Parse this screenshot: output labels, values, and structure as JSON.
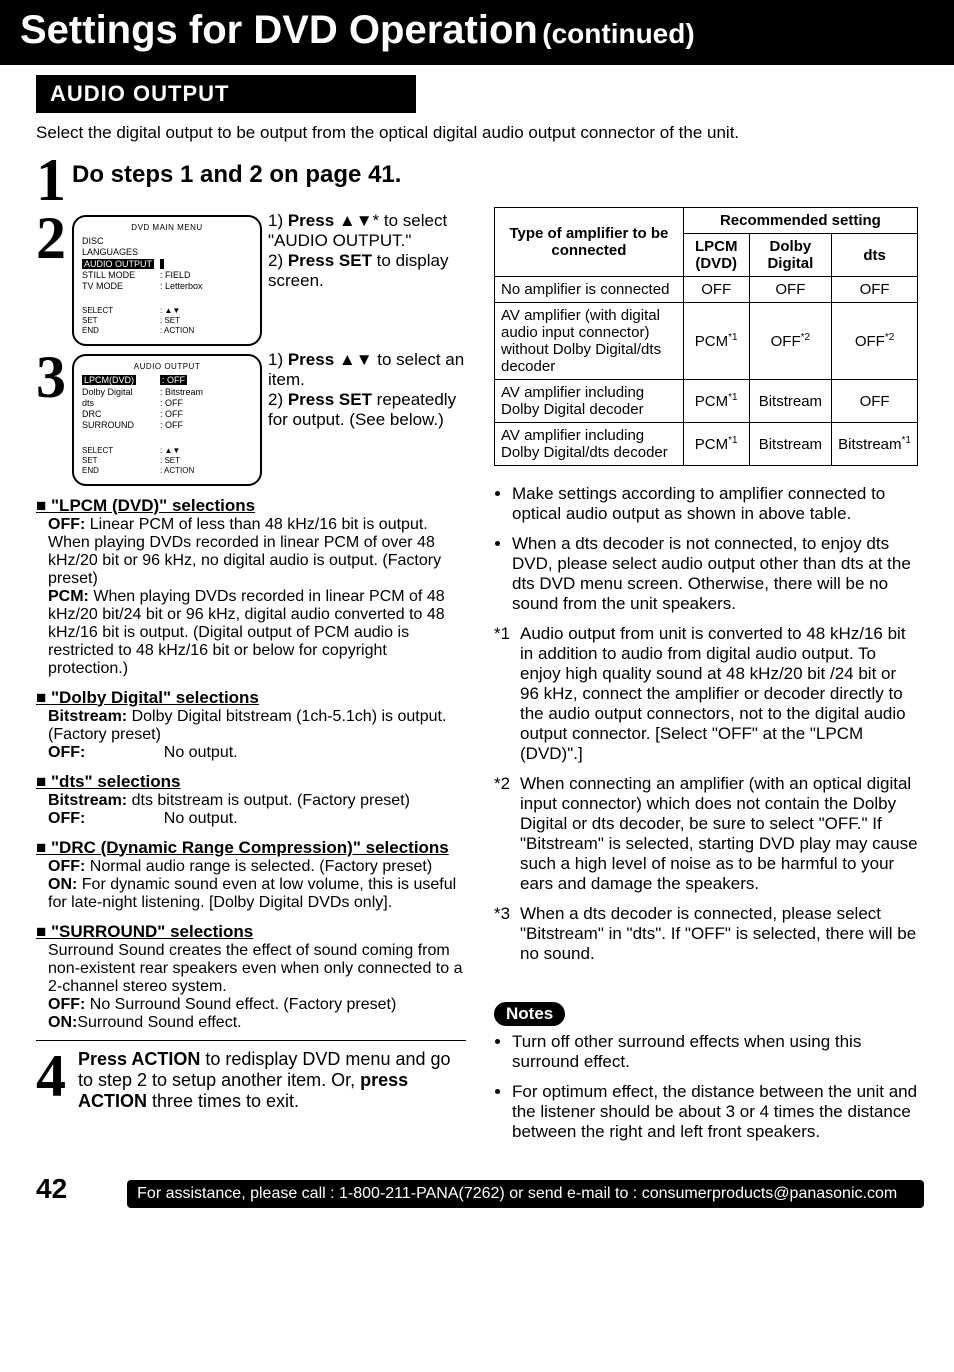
{
  "banner": {
    "title": "Settings for DVD Operation",
    "sub": "(continued)"
  },
  "section": {
    "header": "AUDIO OUTPUT",
    "intro": "Select the digital output to be output from the optical digital audio output connector of the unit."
  },
  "step1": {
    "text": "Do steps 1 and 2 on page 41."
  },
  "step2": {
    "osd_title": "DVD MAIN MENU",
    "osd_rows": [
      {
        "l": "DISC LANGUAGES",
        "r": ""
      },
      {
        "l": "AUDIO OUTPUT",
        "r": "",
        "hilite": true
      },
      {
        "l": "STILL MODE",
        "r": ": FIELD"
      },
      {
        "l": "TV MODE",
        "r": ": Letterbox"
      }
    ],
    "legend": [
      {
        "l": "SELECT",
        "r": ": ▲▼"
      },
      {
        "l": "SET",
        "r": ": SET"
      },
      {
        "l": "END",
        "r": ": ACTION"
      }
    ],
    "line1a": "1) ",
    "line1b": "Press ▲▼",
    "line1c": "* to select \"AUDIO OUTPUT.\"",
    "line2a": "2) ",
    "line2b": "Press SET",
    "line2c": " to display screen."
  },
  "step3": {
    "osd_title": "AUDIO OUTPUT",
    "osd_rows": [
      {
        "l": "LPCM(DVD)",
        "r": ": OFF",
        "hilite": true
      },
      {
        "l": "Dolby Digital",
        "r": ": Bitstream"
      },
      {
        "l": "dts",
        "r": ": OFF"
      },
      {
        "l": "DRC",
        "r": ": OFF"
      },
      {
        "l": "SURROUND",
        "r": ": OFF"
      }
    ],
    "legend": [
      {
        "l": "SELECT",
        "r": ": ▲▼"
      },
      {
        "l": "SET",
        "r": ": SET"
      },
      {
        "l": "END",
        "r": ": ACTION"
      }
    ],
    "line1a": "1) ",
    "line1b": "Press ▲▼",
    "line1c": " to select an item.",
    "line2a": "2) ",
    "line2b": "Press SET",
    "line2c": " repeatedly for output.",
    "line2d": " (See below.)"
  },
  "sel_lpcm": {
    "head": "\"LPCM (DVD)\" selections",
    "off_lab": "OFF:",
    "off_txt": "Linear PCM of less than 48 kHz/16 bit is output. When playing DVDs recorded in linear PCM of over 48 kHz/20 bit or 96 kHz, no digital audio is output. (Factory preset)",
    "pcm_lab": "PCM:",
    "pcm_txt": "When playing DVDs recorded in linear PCM of 48 kHz/20 bit/24 bit or 96 kHz, digital audio converted to 48 kHz/16 bit is output. (Digital output of PCM audio is restricted to 48 kHz/16 bit or below for copyright protection.)"
  },
  "sel_dolby": {
    "head": "\"Dolby Digital\" selections",
    "bs_lab": "Bitstream:",
    "bs_txt": "Dolby Digital bitstream (1ch-5.1ch) is output. (Factory preset)",
    "off_lab": "OFF:",
    "off_txt": "No output."
  },
  "sel_dts": {
    "head": "\"dts\" selections",
    "bs_lab": "Bitstream:",
    "bs_txt": "dts bitstream is output. (Factory preset)",
    "off_lab": "OFF:",
    "off_txt": "No output."
  },
  "sel_drc": {
    "head": "\"DRC (Dynamic Range Compression)\" selections",
    "off_lab": "OFF:",
    "off_txt": "Normal audio range is selected. (Factory preset)",
    "on_lab": "ON:",
    "on_txt": "For dynamic sound even at low volume, this is useful for late-night listening. [Dolby Digital DVDs only]."
  },
  "sel_surround": {
    "head": "\"SURROUND\" selections",
    "intro": "Surround Sound creates the effect of sound coming from non-existent rear speakers even when only connected to a 2-channel stereo system.",
    "off_lab": "OFF:",
    "off_txt": "No Surround Sound effect. (Factory preset)",
    "on_lab": "ON:",
    "on_txt": "Surround Sound effect."
  },
  "step4": {
    "t1": "Press ACTION",
    "t2": " to redisplay DVD menu and go to step 2 to setup another item. Or, ",
    "t3": "press ACTION",
    "t4": " three times to exit."
  },
  "table": {
    "hdr_type": "Type of amplifier to be connected",
    "hdr_rec": "Recommended setting",
    "col_lpcm": "LPCM (DVD)",
    "col_dolby": "Dolby Digital",
    "col_dts": "dts",
    "rows": [
      {
        "type": "No amplifier is connected",
        "lpcm": "OFF",
        "lpcm_sup": "",
        "dolby": "OFF",
        "dolby_sup": "",
        "dts": "OFF",
        "dts_sup": ""
      },
      {
        "type": "AV amplifier (with digital audio input connector) without Dolby Digital/dts decoder",
        "lpcm": "PCM",
        "lpcm_sup": "*1",
        "dolby": "OFF",
        "dolby_sup": "*2",
        "dts": "OFF",
        "dts_sup": "*2"
      },
      {
        "type": "AV amplifier including Dolby Digital decoder",
        "lpcm": "PCM",
        "lpcm_sup": "*1",
        "dolby": "Bitstream",
        "dolby_sup": "",
        "dts": "OFF",
        "dts_sup": ""
      },
      {
        "type": "AV amplifier including Dolby Digital/dts decoder",
        "lpcm": "PCM",
        "lpcm_sup": "*1",
        "dolby": "Bitstream",
        "dolby_sup": "",
        "dts": "Bitstream",
        "dts_sup": "*1"
      }
    ]
  },
  "right_bullets": [
    "Make settings according to amplifier connected to optical audio output as shown in above table.",
    "When a dts decoder is not connected, to enjoy dts DVD, please select audio output other than dts at the dts DVD menu screen. Otherwise, there will be no sound from the unit speakers."
  ],
  "footnotes": [
    {
      "k": "*1",
      "t": "Audio output from unit is converted to 48 kHz/16 bit in addition to audio from digital audio output. To enjoy high quality sound at 48 kHz/20 bit /24 bit or 96 kHz, connect the amplifier or decoder directly to the audio output connectors, not to the digital audio output connector. [Select \"OFF\" at the \"LPCM (DVD)\".]"
    },
    {
      "k": "*2",
      "t": "When connecting an amplifier (with an optical digital input connector) which does not contain the Dolby Digital or dts decoder, be sure to select \"OFF.\" If \"Bitstream\" is selected, starting DVD play may cause such a high level of noise as to be harmful to your ears and damage the speakers."
    },
    {
      "k": "*3",
      "t": "When a dts decoder is connected, please select \"Bitstream\" in \"dts\". If \"OFF\" is selected, there will be no sound."
    }
  ],
  "notes": {
    "label": "Notes",
    "items": [
      "Turn off other surround effects when using this surround effect.",
      "For optimum effect, the distance between the unit and the listener should be about 3 or 4 times the distance between the right and left front speakers."
    ]
  },
  "footer": {
    "page": "42",
    "text": "For assistance, please call : 1-800-211-PANA(7262) or send e-mail to : consumerproducts@panasonic.com"
  }
}
